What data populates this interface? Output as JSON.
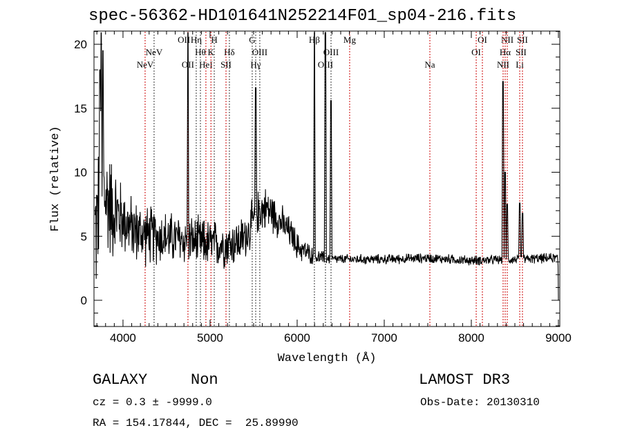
{
  "chart_data": {
    "type": "line",
    "title": "spec-56362-HD101641N252214F01_sp04-216.fits",
    "xlabel": "Wavelength (Å)",
    "ylabel": "Flux (relative)",
    "xlim": [
      3667,
      9016
    ],
    "ylim": [
      -2.05,
      21.03
    ],
    "xticks": [
      4000,
      5000,
      6000,
      7000,
      8000,
      9000
    ],
    "xtick_labels": [
      "4000",
      "5000",
      "6000",
      "7000",
      "8000",
      "9000"
    ],
    "yticks": [
      0,
      5,
      10,
      15,
      20
    ],
    "ytick_labels": [
      "0",
      "5",
      "10",
      "15",
      "20"
    ],
    "grid": false,
    "series": [
      {
        "name": "spectrum",
        "color": "#000000",
        "continuum": [
          [
            3690,
            5.5
          ],
          [
            3750,
            9
          ],
          [
            3800,
            8
          ],
          [
            3900,
            7
          ],
          [
            4000,
            6.3
          ],
          [
            4100,
            5.6
          ],
          [
            4200,
            5.2
          ],
          [
            4400,
            5
          ],
          [
            4600,
            4.8
          ],
          [
            4800,
            4.6
          ],
          [
            5000,
            4.4
          ],
          [
            5200,
            4.4
          ],
          [
            5350,
            4.6
          ],
          [
            5450,
            5.5
          ],
          [
            5550,
            7
          ],
          [
            5650,
            7.2
          ],
          [
            5750,
            6.6
          ],
          [
            5850,
            5.8
          ],
          [
            5950,
            5
          ],
          [
            6000,
            4.2
          ],
          [
            6100,
            3.8
          ],
          [
            6200,
            3.4
          ],
          [
            6400,
            3.2
          ],
          [
            7000,
            3.2
          ],
          [
            7500,
            3.3
          ],
          [
            8000,
            3.1
          ],
          [
            8500,
            3.2
          ],
          [
            8950,
            3.3
          ],
          [
            8995,
            3.3
          ],
          [
            9000,
            0
          ]
        ],
        "noise": [
          [
            3690,
            5
          ],
          [
            3900,
            3.5
          ],
          [
            4000,
            2.4
          ],
          [
            4600,
            1.8
          ],
          [
            5600,
            1.6
          ],
          [
            6000,
            1.0
          ],
          [
            6200,
            0.6
          ],
          [
            6400,
            0.35
          ],
          [
            9000,
            0.35
          ]
        ],
        "emission_peaks": [
          [
            4746,
            20.9
          ],
          [
            5524,
            16.6
          ],
          [
            6198,
            20.9
          ],
          [
            6325,
            20.9
          ],
          [
            6389,
            15.6
          ],
          [
            8365,
            17.1
          ],
          [
            8389,
            10
          ],
          [
            8413,
            7.5
          ],
          [
            8556,
            7.6
          ],
          [
            8587,
            6.8
          ],
          [
            3750,
            20.9
          ],
          [
            3770,
            19.5
          ],
          [
            3735,
            18
          ]
        ]
      }
    ],
    "lines": [
      {
        "label": "NeV",
        "wavelength": 4254,
        "row": 3,
        "style": "red"
      },
      {
        "label": "NeV",
        "wavelength": 4357,
        "row": 2,
        "style": "black"
      },
      {
        "label": "OII",
        "wavelength": 4746,
        "row": 3,
        "style": "red"
      },
      {
        "label": "OII",
        "wavelength": 4700,
        "row": 1,
        "style": "none"
      },
      {
        "label": "Hη",
        "wavelength": 4841,
        "row": 1,
        "style": "black"
      },
      {
        "label": "Hθ",
        "wavelength": 4889,
        "row": 2,
        "style": "black"
      },
      {
        "label": "HeI",
        "wavelength": 4952,
        "row": 3,
        "style": "red"
      },
      {
        "label": "K",
        "wavelength": 5010,
        "row": 2,
        "style": "red"
      },
      {
        "label": "H",
        "wavelength": 5048,
        "row": 1,
        "style": "black"
      },
      {
        "label": "Hδ",
        "wavelength": 5222,
        "row": 2,
        "style": "black"
      },
      {
        "label": "SII",
        "wavelength": 5183,
        "row": 3,
        "style": "red"
      },
      {
        "label": "G",
        "wavelength": 5484,
        "row": 1,
        "style": "black"
      },
      {
        "label": "Hγ",
        "wavelength": 5524,
        "row": 3,
        "style": "black"
      },
      {
        "label": "OIII",
        "wavelength": 5571,
        "row": 2,
        "style": "black"
      },
      {
        "label": "Hβ",
        "wavelength": 6198,
        "row": 1,
        "style": "black"
      },
      {
        "label": "OIII",
        "wavelength": 6389,
        "row": 2,
        "style": "black"
      },
      {
        "label": "OIII",
        "wavelength": 6325,
        "row": 3,
        "style": "black"
      },
      {
        "label": "Mg",
        "wavelength": 6603,
        "row": 1,
        "style": "red"
      },
      {
        "label": "Na",
        "wavelength": 7524,
        "row": 3,
        "style": "red"
      },
      {
        "label": "OI",
        "wavelength": 8127,
        "row": 1,
        "style": "red"
      },
      {
        "label": "OI",
        "wavelength": 8056,
        "row": 2,
        "style": "red"
      },
      {
        "label": "NII",
        "wavelength": 8413,
        "row": 1,
        "style": "red"
      },
      {
        "label": "Hα",
        "wavelength": 8389,
        "row": 2,
        "style": "red"
      },
      {
        "label": "NII",
        "wavelength": 8365,
        "row": 3,
        "style": "red"
      },
      {
        "label": "SII",
        "wavelength": 8587,
        "row": 1,
        "style": "red"
      },
      {
        "label": "SII",
        "wavelength": 8571,
        "row": 2,
        "style": "none"
      },
      {
        "label": "Li",
        "wavelength": 8556,
        "row": 3,
        "style": "red"
      }
    ]
  },
  "info": {
    "class": "GALAXY",
    "subclass": "Non",
    "survey": "LAMOST DR3",
    "cz": "cz = 0.3 ± -9999.0",
    "obs_date": "Obs-Date: 20130310",
    "coords": "RA = 154.17844, DEC =  25.89990"
  },
  "colors": {
    "red_line": "#cc0000",
    "black_line": "#000000"
  }
}
